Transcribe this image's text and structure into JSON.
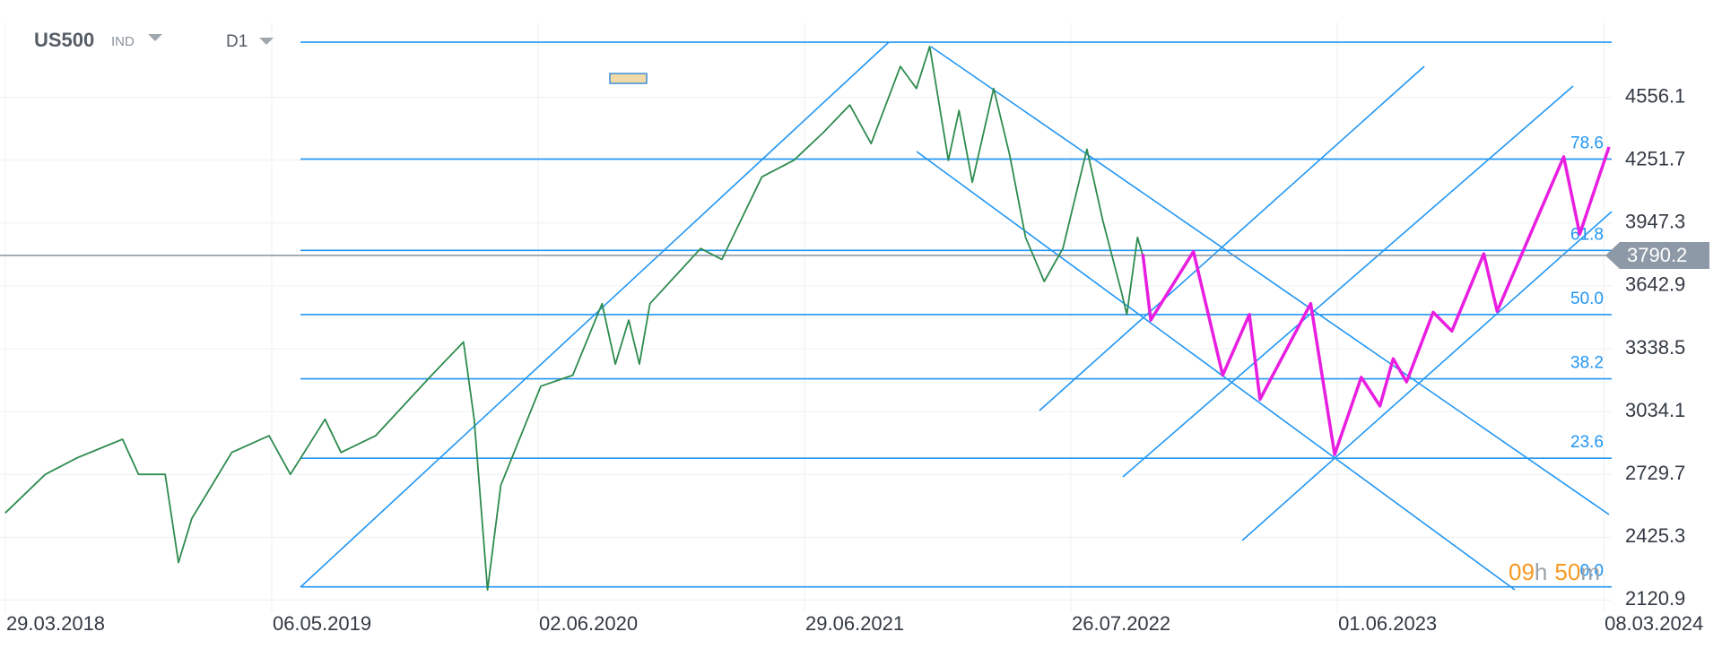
{
  "chart_data": {
    "type": "line",
    "symbol": "US500",
    "instrument_type": "IND",
    "timeframe": "D1",
    "timer_parts": [
      "09",
      "h",
      "50",
      "m"
    ],
    "xlim": [
      -0.02,
      6.03
    ],
    "xticks": [
      {
        "value": 0,
        "label": "29.03.2018"
      },
      {
        "value": 1,
        "label": "06.05.2019"
      },
      {
        "value": 2,
        "label": "02.06.2020"
      },
      {
        "value": 3,
        "label": "29.06.2021"
      },
      {
        "value": 4,
        "label": "26.07.2022"
      },
      {
        "value": 5,
        "label": "01.06.2023"
      },
      {
        "value": 6,
        "label": "08.03.2024"
      }
    ],
    "ylim": [
      2062,
      4919
    ],
    "yticks": [
      4556.1,
      4251.7,
      3947.3,
      3642.9,
      3338.5,
      3034.1,
      2729.7,
      2425.3,
      2120.9
    ],
    "grid": true,
    "current_price": 3790.2,
    "fib_levels": [
      {
        "value": 4823
      },
      {
        "value": 4257,
        "label": "78.6"
      },
      {
        "value": 3815,
        "label": "61.8"
      },
      {
        "value": 3504,
        "label": "50.0"
      },
      {
        "value": 3193,
        "label": "38.2"
      },
      {
        "value": 2808,
        "label": "23.6"
      },
      {
        "value": 2185,
        "label": "0.0"
      }
    ],
    "series": [
      {
        "color": "#2e8b4f",
        "x": [
          0,
          0.15,
          0.27,
          0.44,
          0.5,
          0.6,
          0.65,
          0.7,
          0.85,
          0.99,
          1.07,
          1.2,
          1.26,
          1.39,
          1.6,
          1.72,
          1.76,
          1.81,
          1.86,
          2.01,
          2.13,
          2.24,
          2.29,
          2.34,
          2.38,
          2.42,
          2.61,
          2.69,
          2.84,
          2.96,
          3.07,
          3.17,
          3.25,
          3.36,
          3.42,
          3.47,
          3.54,
          3.58,
          3.63,
          3.71,
          3.77,
          3.83,
          3.9,
          3.97,
          4.06,
          4.12,
          4.19,
          4.21,
          4.25,
          4.27
        ],
        "values": [
          2543,
          2730,
          2810,
          2900,
          2730,
          2730,
          2303,
          2516,
          2836,
          2917,
          2730,
          2997,
          2836,
          2917,
          3210,
          3371,
          2997,
          2170,
          2677,
          3157,
          3210,
          3557,
          3264,
          3477,
          3264,
          3557,
          3824,
          3771,
          4171,
          4251,
          4385,
          4519,
          4332,
          4706,
          4599,
          4802,
          4251,
          4492,
          4145,
          4599,
          4278,
          3878,
          3664,
          3824,
          4305,
          3958,
          3611,
          3504,
          3878,
          3790
        ]
      },
      {
        "color": "#e81ee0",
        "x": [
          4.27,
          4.3,
          4.46,
          4.57,
          4.67,
          4.71,
          4.9,
          4.99,
          5.09,
          5.16,
          5.21,
          5.26,
          5.36,
          5.43,
          5.55,
          5.6,
          5.85,
          5.91,
          6.02
        ],
        "values": [
          3798,
          3477,
          3809,
          3210,
          3504,
          3093,
          3557,
          2826,
          3200,
          3061,
          3290,
          3178,
          3515,
          3424,
          3798,
          3520,
          4268,
          3894,
          4316
        ]
      }
    ]
  }
}
